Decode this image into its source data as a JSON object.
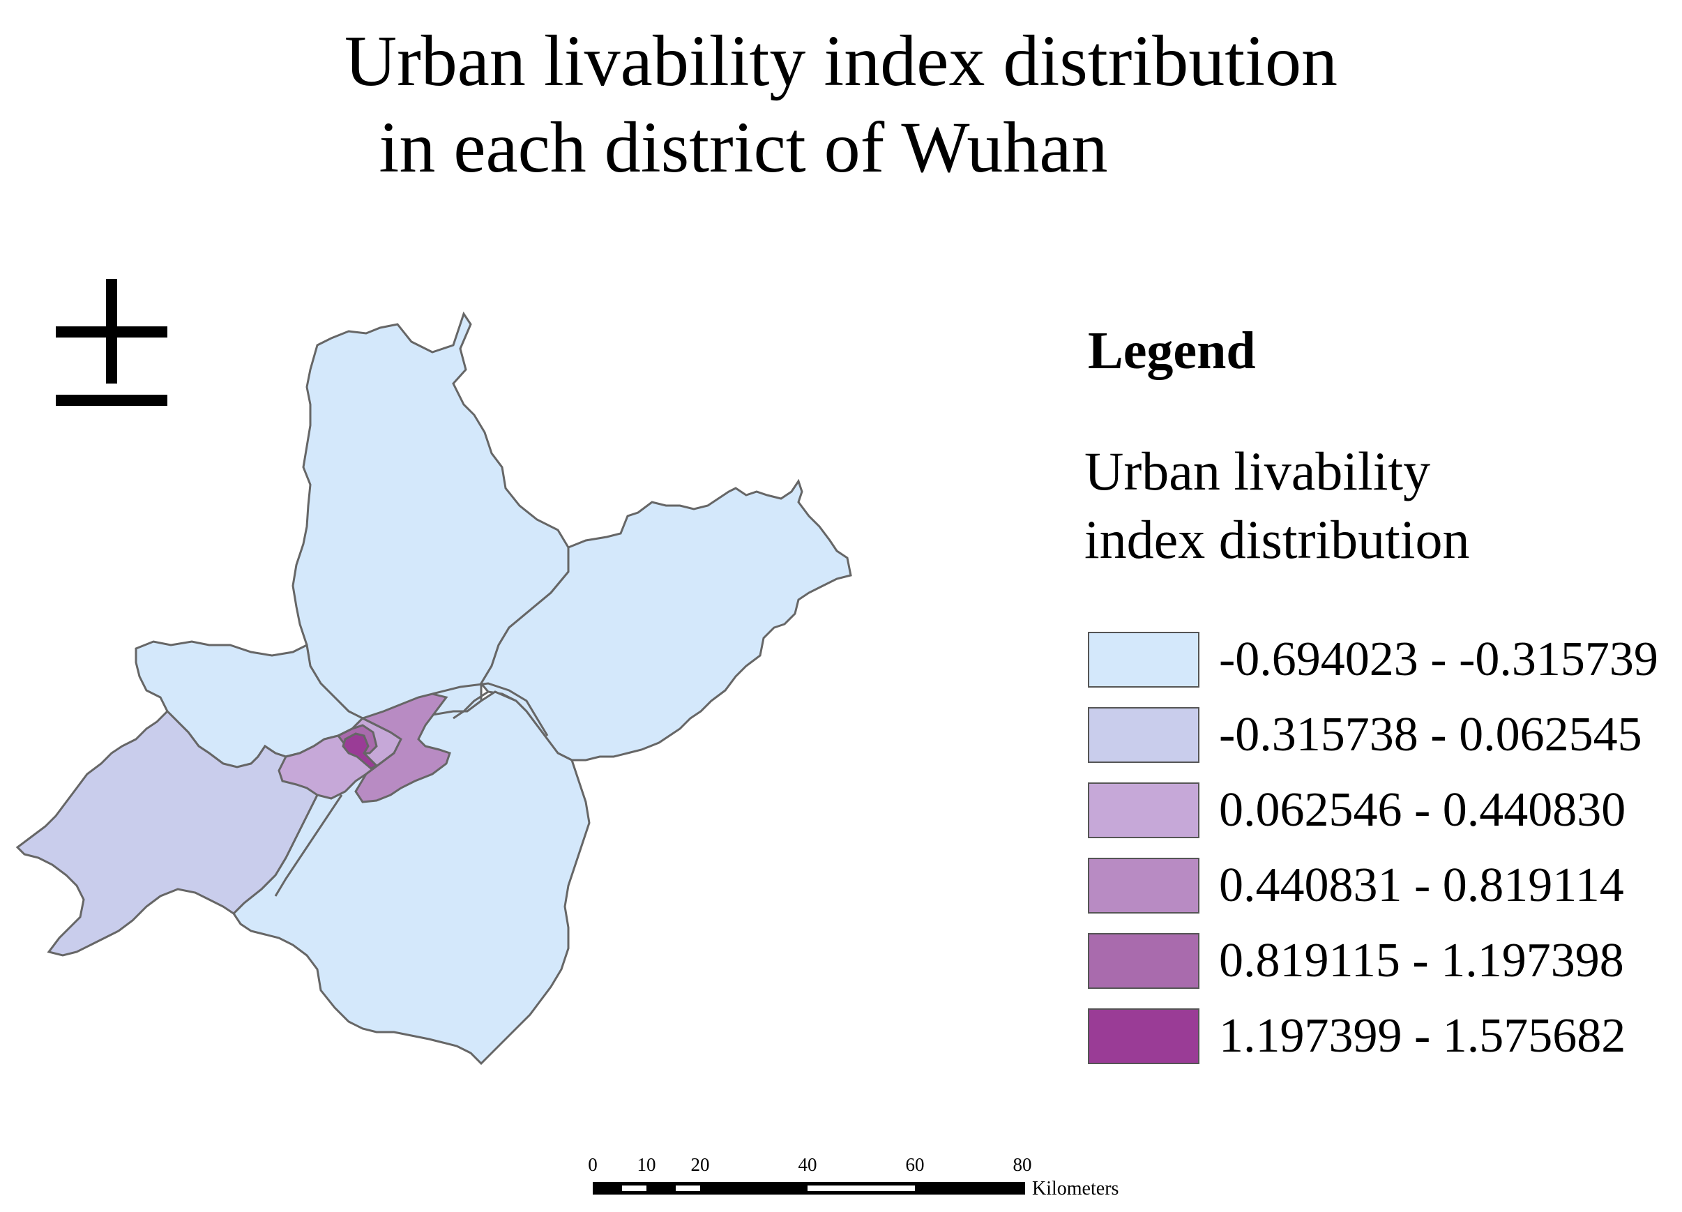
{
  "title": {
    "line1": "Urban livability index distribution",
    "line2": "in each district of Wuhan"
  },
  "north_arrow": {
    "icon": "north-arrow-icon"
  },
  "legend": {
    "heading": "Legend",
    "subtitle_line1": "Urban livability",
    "subtitle_line2": "index distribution",
    "classes": [
      {
        "range": "-0.694023  - -0.315739",
        "color": "#d4e8fb"
      },
      {
        "range": "-0.315738  -  0.062545",
        "color": "#c9cdec"
      },
      {
        "range": " 0.062546  -  0.440830",
        "color": "#c6a8d8"
      },
      {
        "range": " 0.440831  -  0.819114",
        "color": "#b88bc3"
      },
      {
        "range": " 0.819115  -  1.197398",
        "color": "#a96bad"
      },
      {
        "range": " 1.197399  -  1.575682",
        "color": "#9a3c96"
      }
    ]
  },
  "map": {
    "region": "Wuhan",
    "border_color": "#666666",
    "districts": [
      {
        "class": 0
      },
      {
        "class": 0
      },
      {
        "class": 0
      },
      {
        "class": 0
      },
      {
        "class": 1
      },
      {
        "class": 2
      },
      {
        "class": 3
      },
      {
        "class": 4
      },
      {
        "class": 5
      }
    ]
  },
  "scale_bar": {
    "ticks": [
      "0",
      "10",
      "20",
      "40",
      "60",
      "80"
    ],
    "tick_values": [
      0,
      10,
      20,
      40,
      60,
      80
    ],
    "unit": "Kilometers"
  }
}
